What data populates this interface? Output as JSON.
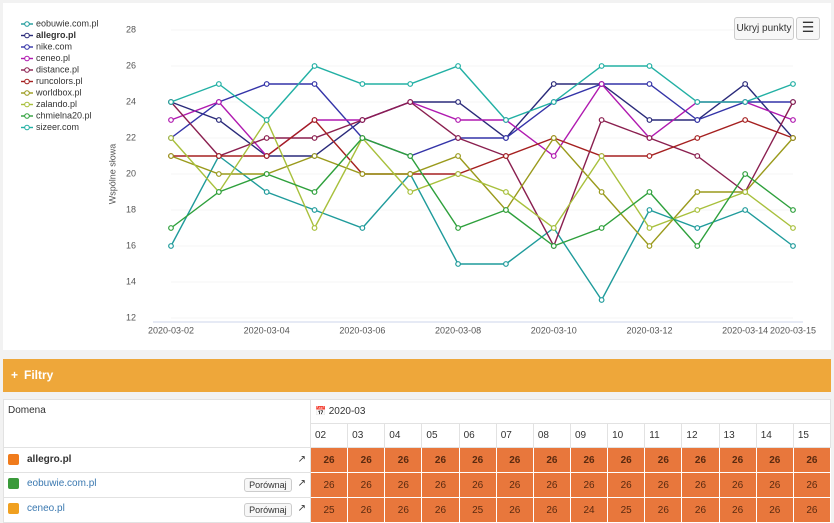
{
  "chart_data": {
    "type": "line",
    "y_label": "Wspólne słowa",
    "categories": [
      "2020-03-02",
      null,
      "2020-03-04",
      null,
      "2020-03-06",
      null,
      "2020-03-08",
      null,
      "2020-03-10",
      null,
      "2020-03-12",
      null,
      "2020-03-14",
      "2020-03-15"
    ],
    "ylim": [
      12,
      28
    ],
    "yticks": [
      12,
      14,
      16,
      18,
      20,
      22,
      24,
      26,
      28
    ],
    "legend_position": "top-left",
    "series": [
      {
        "name": "eobuwie.com.pl",
        "color": "#1f9b9b",
        "values": [
          16,
          21,
          19,
          18,
          17,
          20,
          15,
          15,
          17,
          13,
          18,
          17,
          18,
          16
        ]
      },
      {
        "name": "allegro.pl",
        "color": "#2a2a7a",
        "values": [
          24,
          23,
          21,
          21,
          23,
          24,
          24,
          22,
          25,
          25,
          23,
          23,
          25,
          22
        ]
      },
      {
        "name": "nike.com",
        "color": "#3434a8",
        "values": [
          22,
          24,
          25,
          25,
          22,
          21,
          22,
          22,
          24,
          25,
          25,
          23,
          24,
          24
        ]
      },
      {
        "name": "ceneo.pl",
        "color": "#b01ab0",
        "values": [
          23,
          24,
          21,
          23,
          23,
          24,
          23,
          23,
          21,
          25,
          22,
          24,
          24,
          23
        ]
      },
      {
        "name": "distance.pl",
        "color": "#8a1f4f",
        "values": [
          24,
          21,
          22,
          22,
          23,
          24,
          22,
          21,
          16,
          23,
          22,
          21,
          19,
          24
        ]
      },
      {
        "name": "runcolors.pl",
        "color": "#a52020",
        "values": [
          21,
          21,
          21,
          23,
          20,
          20,
          20,
          21,
          22,
          21,
          21,
          22,
          23,
          22
        ]
      },
      {
        "name": "worldbox.pl",
        "color": "#9a9a1c",
        "values": [
          21,
          20,
          20,
          21,
          20,
          20,
          21,
          18,
          22,
          19,
          16,
          19,
          19,
          22
        ]
      },
      {
        "name": "zalando.pl",
        "color": "#a8c03c",
        "values": [
          22,
          19,
          23,
          17,
          22,
          19,
          20,
          19,
          17,
          21,
          17,
          18,
          19,
          17
        ]
      },
      {
        "name": "chmielna20.pl",
        "color": "#2ea03c",
        "values": [
          17,
          19,
          20,
          19,
          22,
          21,
          17,
          18,
          16,
          17,
          19,
          16,
          20,
          18
        ]
      },
      {
        "name": "sizeer.com",
        "color": "#22b0a4",
        "values": [
          24,
          25,
          23,
          26,
          25,
          25,
          26,
          23,
          24,
          26,
          26,
          24,
          24,
          25
        ]
      }
    ]
  },
  "toolbar": {
    "hide_points": "Ukryj punkty"
  },
  "filters": {
    "title": "Filtry"
  },
  "table": {
    "domain_header": "Domena",
    "month": "2020-03",
    "compare": "Porównaj",
    "days": [
      "02",
      "03",
      "04",
      "05",
      "06",
      "07",
      "08",
      "09",
      "10",
      "11",
      "12",
      "13",
      "14",
      "15"
    ],
    "rows": [
      {
        "domain": "allegro.pl",
        "values": [
          26,
          26,
          26,
          26,
          26,
          26,
          26,
          26,
          26,
          26,
          26,
          26,
          26,
          26
        ]
      },
      {
        "domain": "eobuwie.com.pl",
        "values": [
          26,
          26,
          26,
          26,
          26,
          26,
          26,
          26,
          26,
          26,
          26,
          26,
          26,
          26
        ]
      },
      {
        "domain": "ceneo.pl",
        "values": [
          25,
          26,
          26,
          26,
          25,
          26,
          26,
          24,
          25,
          26,
          26,
          26,
          26,
          26
        ]
      }
    ]
  }
}
